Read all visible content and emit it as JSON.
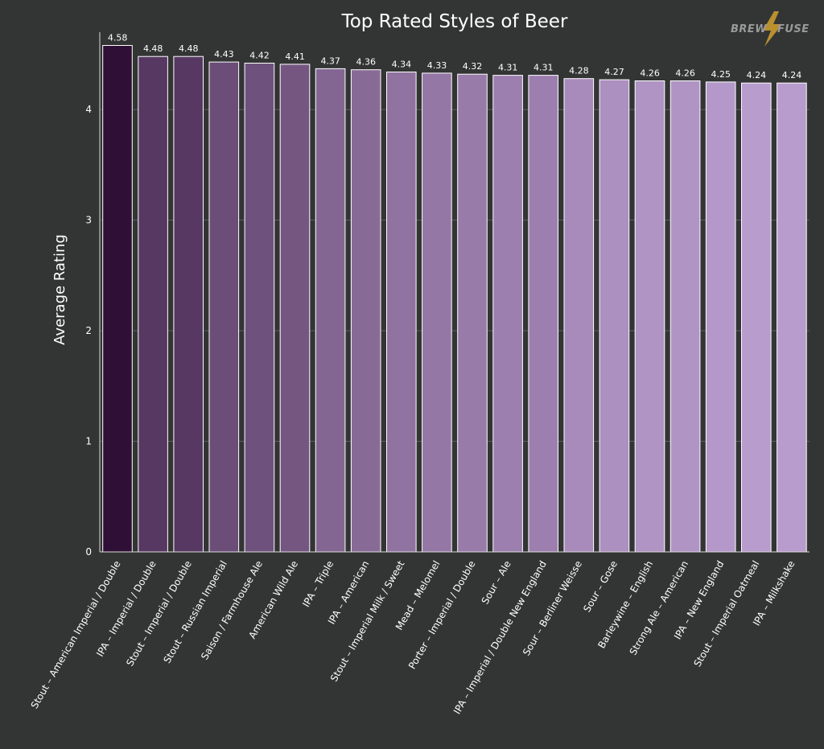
{
  "logo": {
    "left": "BREW",
    "right": "FUSE",
    "bolt_color": "#c99a2e"
  },
  "colors": {
    "background": "#333535",
    "bar_dark": "#2f0f35",
    "bar_light": "#b89ccd",
    "bar_stroke": "#ffffff"
  },
  "chart_data": {
    "type": "bar",
    "title": "Top Rated Styles of Beer",
    "xlabel": "",
    "ylabel": "Average Rating",
    "ylim": [
      0,
      4.7
    ],
    "yticks": [
      0,
      1,
      2,
      3,
      4
    ],
    "grid": true,
    "categories": [
      "Stout – American Imperial / Double",
      "IPA – Imperial / Double",
      "Stout – Imperial / Double",
      "Stout – Russian Imperial",
      "Saison / Farmhouse Ale",
      "American Wild Ale",
      "IPA – Triple",
      "IPA – American",
      "Stout – Imperial Milk / Sweet",
      "Mead – Melomel",
      "Porter – Imperial / Double",
      "Sour – Ale",
      "IPA – Imperial / Double New England",
      "Sour – Berliner Weisse",
      "Sour – Gose",
      "Barleywine – English",
      "Strong Ale – American",
      "IPA – New England",
      "Stout – Imperial Oatmeal",
      "IPA – Milkshake"
    ],
    "values": [
      4.58,
      4.48,
      4.48,
      4.43,
      4.42,
      4.41,
      4.37,
      4.36,
      4.34,
      4.33,
      4.32,
      4.31,
      4.31,
      4.28,
      4.27,
      4.26,
      4.26,
      4.25,
      4.24,
      4.24
    ],
    "labels": [
      "4.58",
      "4.48",
      "4.48",
      "4.43",
      "4.42",
      "4.41",
      "4.37",
      "4.36",
      "4.34",
      "4.33",
      "4.32",
      "4.31",
      "4.31",
      "4.28",
      "4.27",
      "4.26",
      "4.26",
      "4.25",
      "4.24",
      "4.24"
    ]
  }
}
